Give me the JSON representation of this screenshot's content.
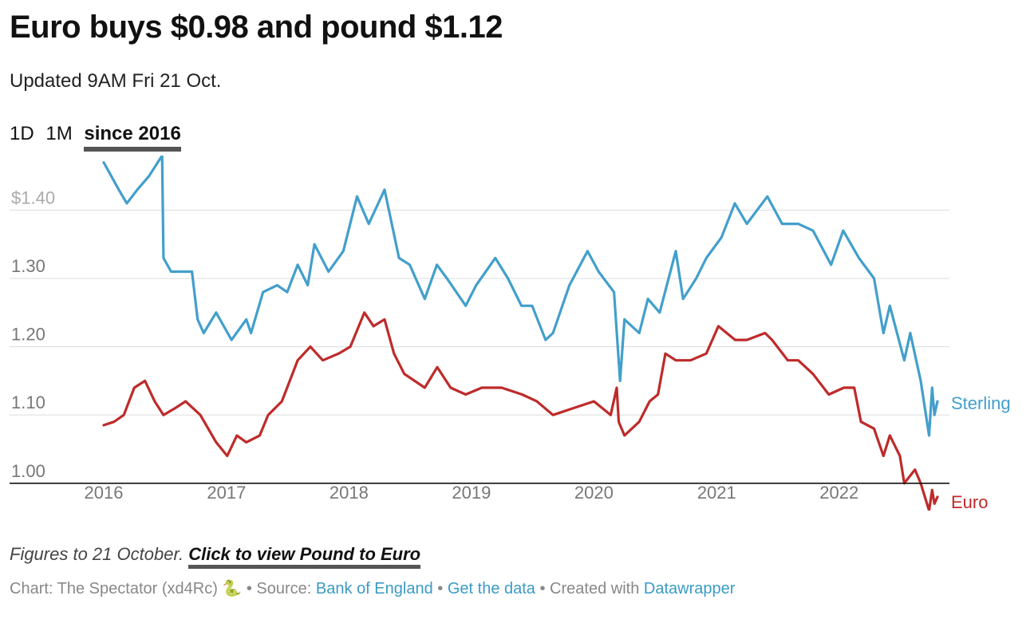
{
  "header": {
    "title": "Euro buys $0.98 and pound $1.12",
    "subtitle": "Updated 9AM Fri 21 Oct."
  },
  "tabs": [
    {
      "label": "1D",
      "active": false
    },
    {
      "label": "1M",
      "active": false
    },
    {
      "label": "since 2016",
      "active": true
    }
  ],
  "chart_data": {
    "type": "line",
    "xlim": [
      "2016-01-01",
      "2022-10-21"
    ],
    "ylim": [
      0.96,
      1.48
    ],
    "y_ticks": [
      {
        "value": 1.0,
        "label": "1.00"
      },
      {
        "value": 1.1,
        "label": "1.10"
      },
      {
        "value": 1.2,
        "label": "1.20"
      },
      {
        "value": 1.3,
        "label": "1.30"
      },
      {
        "value": 1.4,
        "label": "$1.40"
      }
    ],
    "x_ticks": [
      "2016",
      "2017",
      "2018",
      "2019",
      "2020",
      "2021",
      "2022"
    ],
    "baseline": 1.0,
    "grid": true,
    "series": [
      {
        "name": "Sterling",
        "color": "#429fcb",
        "points": [
          [
            "2016-01-01",
            1.47
          ],
          [
            "2016-02-15",
            1.43
          ],
          [
            "2016-03-10",
            1.41
          ],
          [
            "2016-04-10",
            1.43
          ],
          [
            "2016-05-15",
            1.45
          ],
          [
            "2016-06-23",
            1.48
          ],
          [
            "2016-06-27",
            1.33
          ],
          [
            "2016-07-20",
            1.31
          ],
          [
            "2016-08-20",
            1.31
          ],
          [
            "2016-09-20",
            1.31
          ],
          [
            "2016-10-07",
            1.24
          ],
          [
            "2016-10-25",
            1.22
          ],
          [
            "2016-12-01",
            1.25
          ],
          [
            "2017-01-16",
            1.21
          ],
          [
            "2017-03-01",
            1.24
          ],
          [
            "2017-03-15",
            1.22
          ],
          [
            "2017-04-20",
            1.28
          ],
          [
            "2017-06-01",
            1.29
          ],
          [
            "2017-07-01",
            1.28
          ],
          [
            "2017-08-01",
            1.32
          ],
          [
            "2017-08-31",
            1.29
          ],
          [
            "2017-09-20",
            1.35
          ],
          [
            "2017-11-01",
            1.31
          ],
          [
            "2017-12-15",
            1.34
          ],
          [
            "2018-01-25",
            1.42
          ],
          [
            "2018-03-01",
            1.38
          ],
          [
            "2018-04-17",
            1.43
          ],
          [
            "2018-05-30",
            1.33
          ],
          [
            "2018-07-01",
            1.32
          ],
          [
            "2018-08-15",
            1.27
          ],
          [
            "2018-09-20",
            1.32
          ],
          [
            "2018-10-20",
            1.3
          ],
          [
            "2018-12-15",
            1.26
          ],
          [
            "2019-01-15",
            1.29
          ],
          [
            "2019-03-13",
            1.33
          ],
          [
            "2019-04-20",
            1.3
          ],
          [
            "2019-05-30",
            1.26
          ],
          [
            "2019-07-01",
            1.26
          ],
          [
            "2019-08-10",
            1.21
          ],
          [
            "2019-09-01",
            1.22
          ],
          [
            "2019-10-20",
            1.29
          ],
          [
            "2019-12-13",
            1.34
          ],
          [
            "2020-01-15",
            1.31
          ],
          [
            "2020-03-01",
            1.28
          ],
          [
            "2020-03-19",
            1.15
          ],
          [
            "2020-04-01",
            1.24
          ],
          [
            "2020-05-15",
            1.22
          ],
          [
            "2020-06-10",
            1.27
          ],
          [
            "2020-07-15",
            1.25
          ],
          [
            "2020-09-01",
            1.34
          ],
          [
            "2020-09-23",
            1.27
          ],
          [
            "2020-11-01",
            1.3
          ],
          [
            "2020-12-01",
            1.33
          ],
          [
            "2021-01-15",
            1.36
          ],
          [
            "2021-02-24",
            1.41
          ],
          [
            "2021-04-01",
            1.38
          ],
          [
            "2021-06-01",
            1.42
          ],
          [
            "2021-07-15",
            1.38
          ],
          [
            "2021-09-01",
            1.38
          ],
          [
            "2021-10-15",
            1.37
          ],
          [
            "2021-12-08",
            1.32
          ],
          [
            "2022-01-13",
            1.37
          ],
          [
            "2022-03-01",
            1.33
          ],
          [
            "2022-04-15",
            1.3
          ],
          [
            "2022-05-13",
            1.22
          ],
          [
            "2022-06-01",
            1.26
          ],
          [
            "2022-07-14",
            1.18
          ],
          [
            "2022-08-01",
            1.22
          ],
          [
            "2022-09-01",
            1.15
          ],
          [
            "2022-09-26",
            1.07
          ],
          [
            "2022-10-05",
            1.14
          ],
          [
            "2022-10-12",
            1.1
          ],
          [
            "2022-10-21",
            1.12
          ]
        ]
      },
      {
        "name": "Euro",
        "color": "#be2b2a",
        "points": [
          [
            "2016-01-01",
            1.085
          ],
          [
            "2016-02-01",
            1.09
          ],
          [
            "2016-03-01",
            1.1
          ],
          [
            "2016-04-01",
            1.14
          ],
          [
            "2016-05-03",
            1.15
          ],
          [
            "2016-06-01",
            1.12
          ],
          [
            "2016-06-27",
            1.1
          ],
          [
            "2016-08-01",
            1.11
          ],
          [
            "2016-09-01",
            1.12
          ],
          [
            "2016-10-15",
            1.1
          ],
          [
            "2016-12-01",
            1.06
          ],
          [
            "2017-01-03",
            1.04
          ],
          [
            "2017-02-01",
            1.07
          ],
          [
            "2017-03-01",
            1.06
          ],
          [
            "2017-04-10",
            1.07
          ],
          [
            "2017-05-05",
            1.1
          ],
          [
            "2017-06-15",
            1.12
          ],
          [
            "2017-08-01",
            1.18
          ],
          [
            "2017-09-08",
            1.2
          ],
          [
            "2017-10-15",
            1.18
          ],
          [
            "2017-12-01",
            1.19
          ],
          [
            "2018-01-05",
            1.2
          ],
          [
            "2018-02-16",
            1.25
          ],
          [
            "2018-03-15",
            1.23
          ],
          [
            "2018-04-17",
            1.24
          ],
          [
            "2018-05-15",
            1.19
          ],
          [
            "2018-06-15",
            1.16
          ],
          [
            "2018-08-15",
            1.14
          ],
          [
            "2018-09-21",
            1.17
          ],
          [
            "2018-10-31",
            1.14
          ],
          [
            "2018-12-15",
            1.13
          ],
          [
            "2019-02-01",
            1.14
          ],
          [
            "2019-04-01",
            1.14
          ],
          [
            "2019-06-01",
            1.13
          ],
          [
            "2019-07-15",
            1.12
          ],
          [
            "2019-09-01",
            1.1
          ],
          [
            "2019-11-01",
            1.11
          ],
          [
            "2020-01-01",
            1.12
          ],
          [
            "2020-02-20",
            1.1
          ],
          [
            "2020-03-09",
            1.14
          ],
          [
            "2020-03-15",
            1.09
          ],
          [
            "2020-04-01",
            1.07
          ],
          [
            "2020-05-15",
            1.09
          ],
          [
            "2020-06-15",
            1.12
          ],
          [
            "2020-07-10",
            1.13
          ],
          [
            "2020-08-01",
            1.19
          ],
          [
            "2020-09-01",
            1.18
          ],
          [
            "2020-10-15",
            1.18
          ],
          [
            "2020-12-01",
            1.19
          ],
          [
            "2021-01-06",
            1.23
          ],
          [
            "2021-02-25",
            1.21
          ],
          [
            "2021-04-01",
            1.21
          ],
          [
            "2021-05-25",
            1.22
          ],
          [
            "2021-06-15",
            1.21
          ],
          [
            "2021-08-01",
            1.18
          ],
          [
            "2021-09-01",
            1.18
          ],
          [
            "2021-10-15",
            1.16
          ],
          [
            "2021-12-01",
            1.13
          ],
          [
            "2022-01-15",
            1.14
          ],
          [
            "2022-02-15",
            1.14
          ],
          [
            "2022-03-07",
            1.09
          ],
          [
            "2022-04-15",
            1.08
          ],
          [
            "2022-05-13",
            1.04
          ],
          [
            "2022-06-01",
            1.07
          ],
          [
            "2022-07-01",
            1.04
          ],
          [
            "2022-07-14",
            1.0
          ],
          [
            "2022-08-15",
            1.02
          ],
          [
            "2022-09-01",
            1.0
          ],
          [
            "2022-09-26",
            0.96
          ],
          [
            "2022-10-05",
            0.99
          ],
          [
            "2022-10-12",
            0.97
          ],
          [
            "2022-10-21",
            0.98
          ]
        ]
      }
    ]
  },
  "footer": {
    "note": "Figures to 21 October.",
    "link_label": "Click to view Pound to Euro",
    "chart_credit": "Chart: The Spectator (xd4Rc) 🐍 • Source:",
    "source_link": "Bank of England",
    "separator": "•",
    "data_link": "Get the data",
    "created_with": "• Created with",
    "tool_link": "Datawrapper"
  }
}
